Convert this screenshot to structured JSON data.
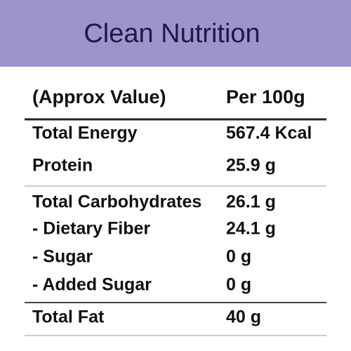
{
  "header": {
    "title": "Clean Nutrition"
  },
  "table": {
    "columns": [
      "(Approx Value)",
      "Per 100g"
    ],
    "rows": [
      [
        "Total Energy",
        "567.4 Kcal"
      ],
      [
        "Protein",
        "25.9 g"
      ],
      [
        "Total Carbohydrates",
        "26.1 g"
      ],
      [
        "- Dietary Fiber",
        "24.1 g"
      ],
      [
        "- Sugar",
        "0 g"
      ],
      [
        "- Added Sugar",
        "0 g"
      ],
      [
        "Total Fat",
        "40 g"
      ]
    ]
  }
}
